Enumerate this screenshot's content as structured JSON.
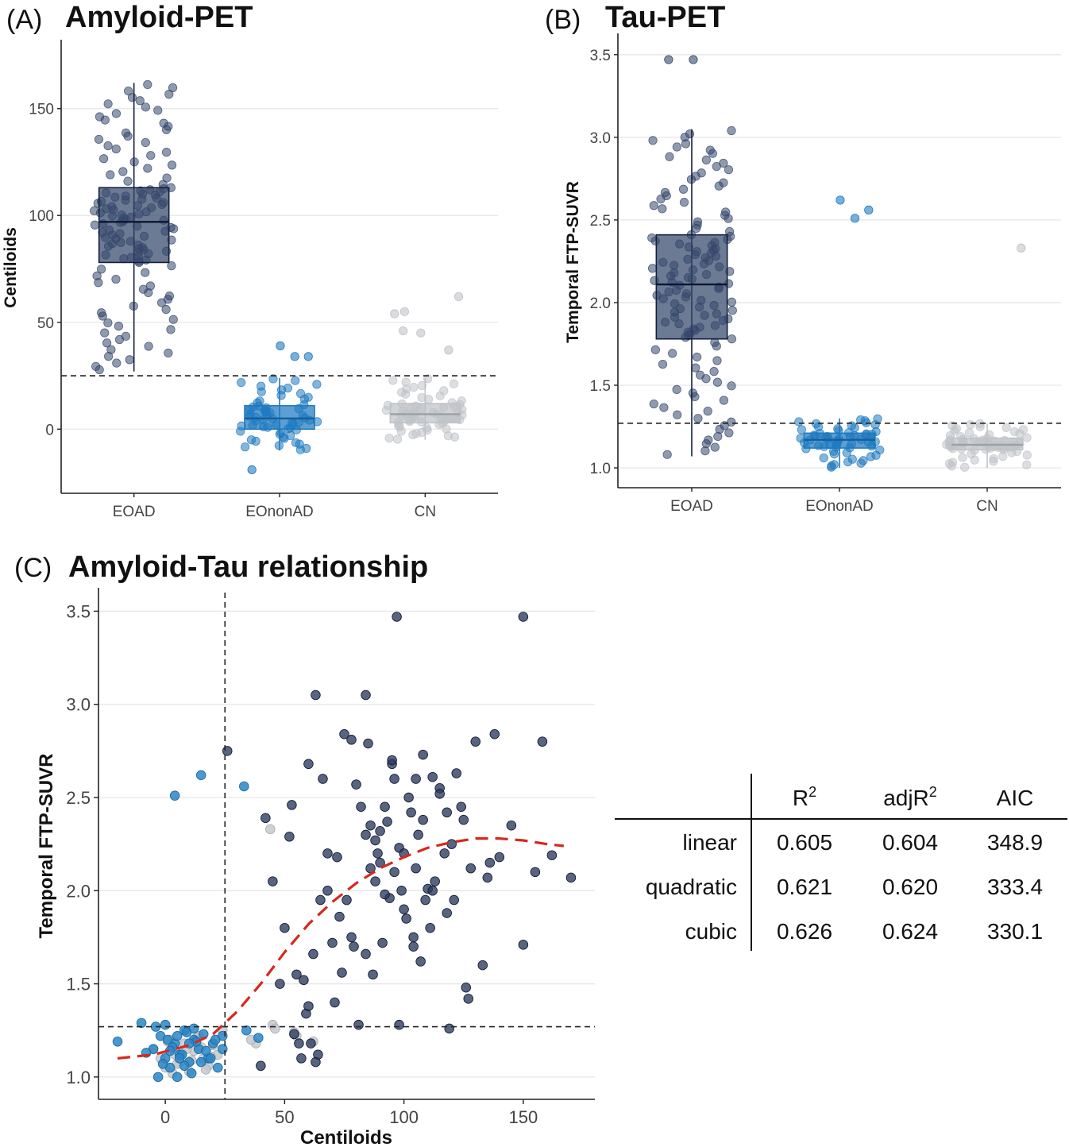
{
  "chart_data": [
    {
      "type": "box",
      "panel": "(A)",
      "title": "Amyloid-PET",
      "xlabel": "",
      "ylabel": "Centiloids",
      "ylim": [
        -30,
        180
      ],
      "yticks": [
        0,
        50,
        100,
        150
      ],
      "categories": [
        "EOAD",
        "EOnonAD",
        "CN"
      ],
      "threshold": 25,
      "boxes": [
        {
          "group": "EOAD",
          "min": 27,
          "q1": 78,
          "median": 97,
          "q3": 113,
          "max": 162,
          "color": "#34476b"
        },
        {
          "group": "EOnonAD",
          "min": -10,
          "q1": 0,
          "median": 5,
          "q3": 11,
          "max": 24,
          "color": "#1f7ac0"
        },
        {
          "group": "CN",
          "min": -5,
          "q1": 3,
          "median": 7,
          "q3": 12,
          "max": 24,
          "color": "#bfc3c8"
        }
      ],
      "outliers": [
        {
          "group": "EOnonAD",
          "values": [
            39,
            34,
            34,
            -19
          ]
        },
        {
          "group": "CN",
          "values": [
            62,
            55,
            54,
            46,
            45,
            37
          ]
        }
      ]
    },
    {
      "type": "box",
      "panel": "(B)",
      "title": "Tau-PET",
      "xlabel": "",
      "ylabel": "Temporal FTP-SUVR",
      "ylim": [
        0.88,
        3.6
      ],
      "yticks": [
        1.0,
        1.5,
        2.0,
        2.5,
        3.0,
        3.5
      ],
      "categories": [
        "EOAD",
        "EOnonAD",
        "CN"
      ],
      "threshold": 1.27,
      "boxes": [
        {
          "group": "EOAD",
          "min": 1.07,
          "q1": 1.78,
          "median": 2.11,
          "q3": 2.41,
          "max": 3.05,
          "color": "#34476b"
        },
        {
          "group": "EOnonAD",
          "min": 1.0,
          "q1": 1.12,
          "median": 1.17,
          "q3": 1.21,
          "max": 1.3,
          "color": "#1f7ac0"
        },
        {
          "group": "CN",
          "min": 1.0,
          "q1": 1.11,
          "median": 1.14,
          "q3": 1.18,
          "max": 1.27,
          "color": "#bfc3c8"
        }
      ],
      "outliers": [
        {
          "group": "EOAD",
          "values": [
            3.47,
            3.47
          ]
        },
        {
          "group": "EOnonAD",
          "values": [
            2.62,
            2.56,
            2.51
          ]
        },
        {
          "group": "CN",
          "values": [
            2.33
          ]
        }
      ]
    },
    {
      "type": "scatter",
      "panel": "(C)",
      "title": "Amyloid-Tau relationship",
      "xlabel": "Centiloids",
      "ylabel": "Temporal FTP-SUVR",
      "xlim": [
        -28,
        180
      ],
      "ylim": [
        0.88,
        3.6
      ],
      "xticks": [
        0,
        50,
        100,
        150
      ],
      "yticks": [
        1.0,
        1.5,
        2.0,
        2.5,
        3.0,
        3.5
      ],
      "vline": 25,
      "hline": 1.27,
      "fit_curve": {
        "style": "dashed",
        "color": "#d7281e",
        "x": [
          -20,
          -5,
          10,
          20,
          30,
          40,
          50,
          60,
          70,
          80,
          90,
          100,
          110,
          120,
          130,
          140,
          150,
          160,
          167
        ],
        "y": [
          1.1,
          1.12,
          1.17,
          1.23,
          1.35,
          1.5,
          1.67,
          1.82,
          1.94,
          2.04,
          2.12,
          2.18,
          2.23,
          2.26,
          2.28,
          2.28,
          2.27,
          2.25,
          2.24
        ]
      },
      "points": [
        {
          "group": "EOAD",
          "color": "#2a3a5c",
          "x": [
            97,
            150,
            63,
            84,
            26,
            42,
            75,
            60,
            45,
            48,
            55,
            52,
            68,
            58,
            65,
            50,
            62,
            70,
            72,
            66,
            78,
            80,
            82,
            85,
            88,
            90,
            92,
            95,
            98,
            100,
            102,
            104,
            106,
            108,
            110,
            112,
            115,
            118,
            120,
            122,
            125,
            128,
            130,
            135,
            138,
            140,
            145,
            155,
            158,
            162,
            170,
            96,
            94,
            86,
            84,
            76,
            74,
            64,
            56,
            54,
            53,
            57,
            61,
            63,
            59,
            71,
            73,
            79,
            81,
            87,
            89,
            91,
            93,
            99,
            101,
            103,
            105,
            107,
            109,
            111,
            113,
            117,
            119,
            121,
            124,
            127,
            133,
            150,
            98,
            88,
            100,
            108,
            115,
            92,
            96,
            84,
            90,
            104,
            112,
            118,
            126,
            136,
            105,
            95,
            86,
            78,
            68,
            60,
            40
          ],
          "y": [
            3.47,
            3.47,
            3.05,
            3.05,
            2.75,
            2.39,
            2.84,
            2.68,
            2.05,
            1.5,
            1.55,
            2.29,
            2.2,
            1.52,
            1.95,
            1.8,
            1.66,
            1.72,
            2.18,
            2.6,
            2.81,
            2.57,
            2.45,
            2.79,
            2.05,
            2.32,
            2.45,
            2.68,
            2.23,
            2.2,
            2.5,
            1.75,
            2.3,
            2.73,
            2.01,
            2.61,
            2.55,
            2.42,
            2.25,
            2.63,
            2.38,
            2.12,
            2.8,
            2.07,
            2.84,
            2.18,
            2.35,
            2.1,
            2.8,
            2.19,
            2.07,
            2.6,
            1.96,
            2.12,
            1.66,
            1.95,
            1.56,
            1.12,
            1.18,
            1.23,
            2.46,
            1.1,
            1.18,
            1.08,
            1.34,
            1.4,
            1.86,
            1.7,
            1.28,
            1.55,
            2.2,
            1.72,
            2.37,
            2.0,
            1.85,
            2.42,
            2.12,
            1.62,
            1.95,
            1.8,
            2.05,
            2.2,
            1.26,
            1.95,
            2.45,
            1.42,
            1.6,
            1.71,
            1.28,
            2.27,
            1.9,
            2.38,
            2.52,
            1.98,
            2.1,
            2.3,
            2.15,
            1.7,
            2.0,
            1.88,
            1.48,
            2.15,
            2.6,
            2.7,
            2.35,
            1.75,
            2.0,
            1.38,
            1.06
          ]
        },
        {
          "group": "EOnonAD",
          "color": "#2b86c5",
          "x": [
            15,
            4,
            33,
            -10,
            -20,
            -5,
            -2,
            0,
            2,
            4,
            6,
            8,
            10,
            12,
            14,
            16,
            18,
            20,
            22,
            24,
            -8,
            -4,
            -1,
            1,
            3,
            5,
            7,
            9,
            11,
            13,
            15,
            17,
            19,
            21,
            0,
            5,
            10,
            -3,
            2,
            8,
            12,
            6,
            34,
            39,
            24
          ],
          "y": [
            2.62,
            2.51,
            2.56,
            1.29,
            1.19,
            1.15,
            1.22,
            1.1,
            1.05,
            1.18,
            1.12,
            1.25,
            1.08,
            1.2,
            1.15,
            1.23,
            1.1,
            1.18,
            1.05,
            1.22,
            1.13,
            1.27,
            1.07,
            1.2,
            1.16,
            1.0,
            1.12,
            1.24,
            1.02,
            1.19,
            1.08,
            1.14,
            1.1,
            1.2,
            1.28,
            1.22,
            1.18,
            1.0,
            1.14,
            1.06,
            1.26,
            1.1,
            1.25,
            1.21,
            1.15
          ]
        },
        {
          "group": "CN",
          "color": "#c6c9ce",
          "x": [
            -5,
            -2,
            0,
            2,
            4,
            6,
            8,
            10,
            12,
            14,
            16,
            18,
            20,
            22,
            24,
            3,
            7,
            11,
            15,
            19,
            1,
            5,
            9,
            13,
            17,
            45,
            38,
            36,
            55,
            54,
            46,
            62,
            44
          ],
          "y": [
            1.15,
            1.1,
            1.05,
            1.2,
            1.12,
            1.08,
            1.18,
            1.03,
            1.14,
            1.22,
            1.1,
            1.06,
            1.17,
            1.12,
            1.25,
            1.02,
            1.13,
            1.09,
            1.16,
            1.11,
            1.19,
            1.07,
            1.15,
            1.21,
            1.04,
            1.28,
            1.18,
            1.2,
            1.22,
            1.24,
            1.26,
            1.19,
            2.33
          ]
        }
      ]
    }
  ],
  "fit_table": {
    "columns": [
      "R",
      "adjR",
      "AIC"
    ],
    "superscript": "2",
    "rows": [
      {
        "model": "linear",
        "r2": "0.605",
        "adjr2": "0.604",
        "aic": "348.9"
      },
      {
        "model": "quadratic",
        "r2": "0.621",
        "adjr2": "0.620",
        "aic": "333.4"
      },
      {
        "model": "cubic",
        "r2": "0.626",
        "adjr2": "0.624",
        "aic": "330.1"
      }
    ]
  }
}
